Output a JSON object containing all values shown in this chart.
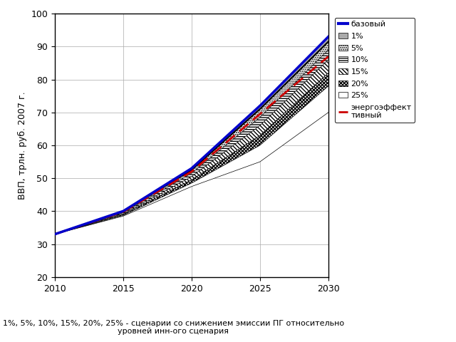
{
  "years": [
    2010,
    2015,
    2020,
    2025,
    2030
  ],
  "baseline": [
    33,
    40,
    53,
    72,
    93
  ],
  "scenario_1pct": [
    33,
    39.8,
    52.5,
    71,
    91.5
  ],
  "scenario_5pct": [
    33,
    39.5,
    51.5,
    68.5,
    89
  ],
  "scenario_10pct": [
    33,
    39.2,
    50.5,
    66,
    86
  ],
  "scenario_15pct": [
    33,
    39.0,
    49.5,
    63,
    82
  ],
  "scenario_20pct": [
    33,
    38.7,
    48.5,
    60,
    78
  ],
  "scenario_25pct": [
    33,
    38.5,
    47.5,
    55,
    70
  ],
  "energy_eff": [
    33,
    39.8,
    52.0,
    69.5,
    87
  ],
  "ylabel": "ВВП, трлн. руб. 2007 г.",
  "ylim": [
    20,
    100
  ],
  "xlim": [
    2010,
    2030
  ],
  "yticks": [
    20,
    30,
    40,
    50,
    60,
    70,
    80,
    90,
    100
  ],
  "xticks": [
    2010,
    2015,
    2020,
    2025,
    2030
  ],
  "caption": "1%, 5%, 10%, 15%, 20%, 25% - сценарии со снижением эмиссии ПГ относительно\nуровней инн-ого сценария",
  "legend_labels": [
    "базовый",
    "1%",
    "5%",
    "10%",
    "15%",
    "20%",
    "25%",
    "энергоэффект\nтивный"
  ],
  "baseline_color": "#0000cc",
  "energy_color": "#cc0000",
  "bg_color": "#ffffff",
  "grid_color": "#aaaaaa"
}
